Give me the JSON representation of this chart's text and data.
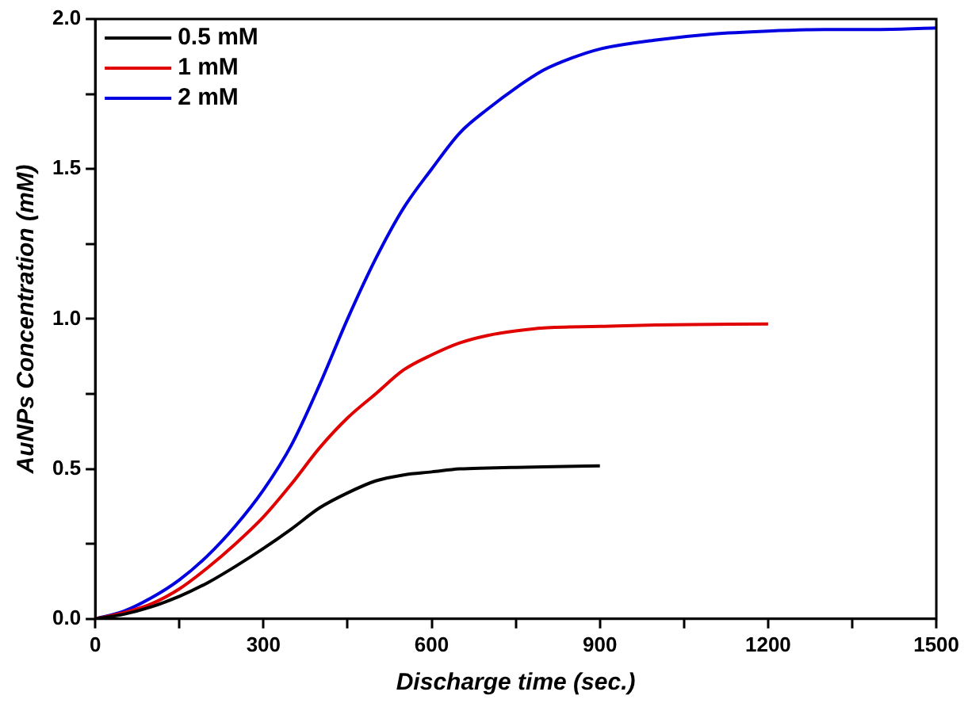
{
  "chart_data": {
    "type": "line",
    "xlabel": "Discharge time (sec.)",
    "ylabel": "AuNPs Concentration (mM)",
    "xlim": [
      0,
      1500
    ],
    "xticks": [
      0,
      {
        "value": 150,
        "label": null
      },
      300,
      {
        "value": 450,
        "label": null
      },
      600,
      {
        "value": 750,
        "label": null
      },
      900,
      {
        "value": 1050,
        "label": null
      },
      1200,
      {
        "value": 1350,
        "label": null
      },
      1500
    ],
    "ylim": [
      0,
      2.0
    ],
    "yticks": [
      {
        "value": 0,
        "label": "0.0"
      },
      {
        "value": 0.25,
        "label": null
      },
      0.5,
      {
        "value": 0.75,
        "label": null
      },
      {
        "value": 1,
        "label": "1.0"
      },
      {
        "value": 1.25,
        "label": null
      },
      1.5,
      {
        "value": 1.75,
        "label": null
      },
      {
        "value": 2,
        "label": "2.0"
      }
    ],
    "legend": "top left",
    "grid": false,
    "marker": "none",
    "line_style": "solid",
    "series": [
      {
        "name": "0.5 mM",
        "color": "#000000",
        "x": [
          0,
          50,
          100,
          150,
          200,
          250,
          300,
          350,
          400,
          450,
          500,
          550,
          600,
          650,
          700,
          750,
          800,
          900
        ],
        "values": [
          0,
          0.015,
          0.04,
          0.075,
          0.12,
          0.175,
          0.235,
          0.3,
          0.37,
          0.42,
          0.46,
          0.48,
          0.49,
          0.5,
          0.503,
          0.505,
          0.507,
          0.51
        ]
      },
      {
        "name": "1 mM",
        "color": "#e00000",
        "x": [
          0,
          50,
          100,
          150,
          200,
          250,
          300,
          350,
          400,
          450,
          500,
          550,
          600,
          650,
          700,
          750,
          800,
          900,
          1000,
          1100,
          1200
        ],
        "values": [
          0,
          0.02,
          0.05,
          0.1,
          0.17,
          0.25,
          0.34,
          0.45,
          0.57,
          0.67,
          0.75,
          0.83,
          0.88,
          0.92,
          0.945,
          0.96,
          0.97,
          0.975,
          0.98,
          0.982,
          0.983
        ]
      },
      {
        "name": "2 mM",
        "color": "#0000e0",
        "x": [
          0,
          50,
          100,
          150,
          200,
          250,
          300,
          350,
          400,
          450,
          500,
          550,
          600,
          650,
          700,
          750,
          800,
          850,
          900,
          1000,
          1100,
          1200,
          1300,
          1400,
          1500
        ],
        "values": [
          0,
          0.025,
          0.07,
          0.13,
          0.21,
          0.31,
          0.43,
          0.58,
          0.78,
          1.0,
          1.2,
          1.37,
          1.5,
          1.62,
          1.7,
          1.77,
          1.83,
          1.87,
          1.9,
          1.93,
          1.95,
          1.96,
          1.965,
          1.965,
          1.97
        ]
      }
    ]
  }
}
